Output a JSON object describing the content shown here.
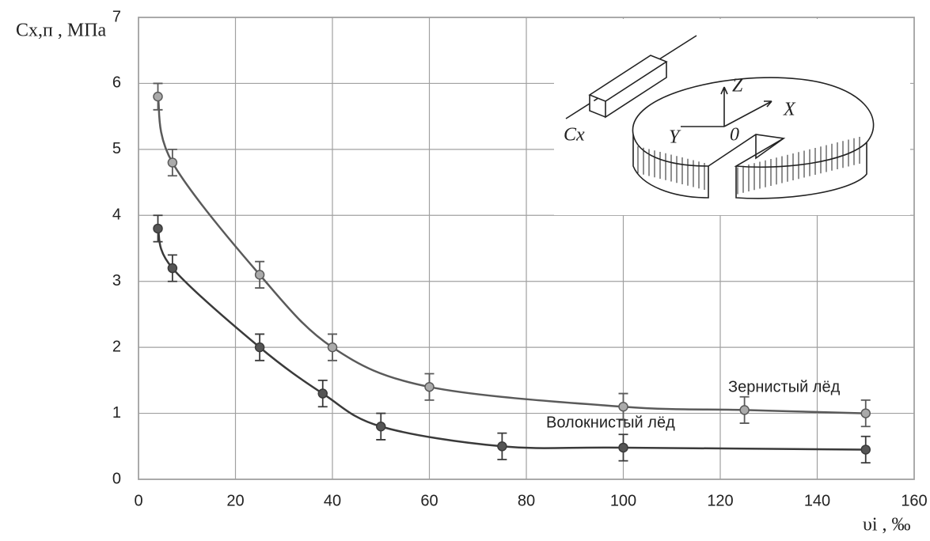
{
  "chart_data": {
    "type": "line",
    "y_label": "Cх,п , МПа",
    "x_label": "υi , ‰",
    "xlim": [
      0,
      160
    ],
    "xticks": [
      0,
      20,
      40,
      60,
      80,
      100,
      120,
      140,
      160
    ],
    "ylim": [
      0,
      7
    ],
    "yticks": [
      0,
      1,
      2,
      3,
      4,
      5,
      6,
      7
    ],
    "grid": true,
    "series": [
      {
        "name": "Зернистый лёд",
        "color": "#5a5a5a",
        "x": [
          4,
          7,
          25,
          40,
          60,
          100,
          125,
          150
        ],
        "values": [
          5.8,
          4.8,
          3.1,
          2.0,
          1.4,
          1.1,
          1.05,
          1.0
        ],
        "errors": [
          0.2,
          0.2,
          0.2,
          0.2,
          0.2,
          0.2,
          0.2,
          0.2
        ]
      },
      {
        "name": "Волокнистый лёд",
        "color": "#3a3a3a",
        "x": [
          4,
          7,
          25,
          38,
          50,
          75,
          100,
          150
        ],
        "values": [
          3.8,
          3.2,
          2.0,
          1.3,
          0.8,
          0.5,
          0.48,
          0.45
        ],
        "errors": [
          0.2,
          0.2,
          0.2,
          0.2,
          0.2,
          0.2,
          0.2,
          0.2
        ]
      }
    ],
    "inset_labels": [
      "Z",
      "X",
      "Y",
      "0",
      "Cx"
    ]
  }
}
